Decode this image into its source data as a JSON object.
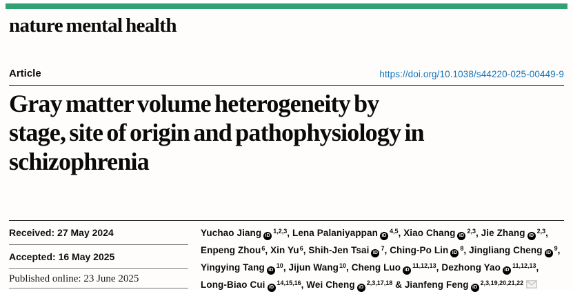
{
  "masthead": {
    "brand": "nature mental health",
    "bar_color": "#30a172"
  },
  "article": {
    "type_label": "Article",
    "doi_label": "https://doi.org/10.1038/s44220-025-00449-9",
    "doi_color": "#1273b8"
  },
  "title": {
    "lines": [
      "Gray matter volume heterogeneity by",
      "stage, site of origin and pathophysiology in",
      "schizophrenia"
    ]
  },
  "dates": {
    "received_label": "Received: 27 May 2024",
    "accepted_label": "Accepted: 16 May 2025",
    "published_label": "Published online: 23 June 2025"
  },
  "authors": {
    "orcid_glyph": "iD",
    "orcid_color": "#000000",
    "envelope_color": "#bdbdbd",
    "lines": [
      [
        {
          "name": "Yuchao Jiang",
          "orcid": true,
          "sup": "1,2,3",
          "sep": ", "
        },
        {
          "name": "Lena Palaniyappan",
          "orcid": true,
          "sup": "4,5",
          "sep": ", "
        },
        {
          "name": "Xiao Chang",
          "orcid": true,
          "sup": "2,3",
          "sep": ", "
        },
        {
          "name": "Jie Zhang",
          "orcid": true,
          "sup": "2,3",
          "sep": ","
        }
      ],
      [
        {
          "name": "Enpeng Zhou",
          "orcid": false,
          "sup": "6",
          "sep": ", "
        },
        {
          "name": "Xin Yu",
          "orcid": false,
          "sup": "6",
          "sep": ", "
        },
        {
          "name": "Shih-Jen Tsai",
          "orcid": true,
          "sup": "7",
          "sep": ", "
        },
        {
          "name": "Ching-Po Lin",
          "orcid": true,
          "sup": "8",
          "sep": ", "
        },
        {
          "name": "Jingliang Cheng",
          "orcid": true,
          "sup": "9",
          "sep": ","
        }
      ],
      [
        {
          "name": "Yingying Tang",
          "orcid": true,
          "sup": "10",
          "sep": ", "
        },
        {
          "name": "Jijun Wang",
          "orcid": false,
          "sup": "10",
          "sep": ", "
        },
        {
          "name": "Cheng Luo",
          "orcid": true,
          "sup": "11,12,13",
          "sep": ", "
        },
        {
          "name": "Dezhong Yao",
          "orcid": true,
          "sup": "11,12,13",
          "sep": ","
        }
      ],
      [
        {
          "name": "Long-Biao Cui",
          "orcid": true,
          "sup": "14,15,16",
          "sep": ", "
        },
        {
          "name": "Wei Cheng",
          "orcid": true,
          "sup": "2,3,17,18",
          "sep": " & "
        },
        {
          "name": "Jianfeng Feng",
          "orcid": true,
          "sup": "2,3,19,20,21,22",
          "sep": "",
          "email": true
        }
      ]
    ]
  }
}
